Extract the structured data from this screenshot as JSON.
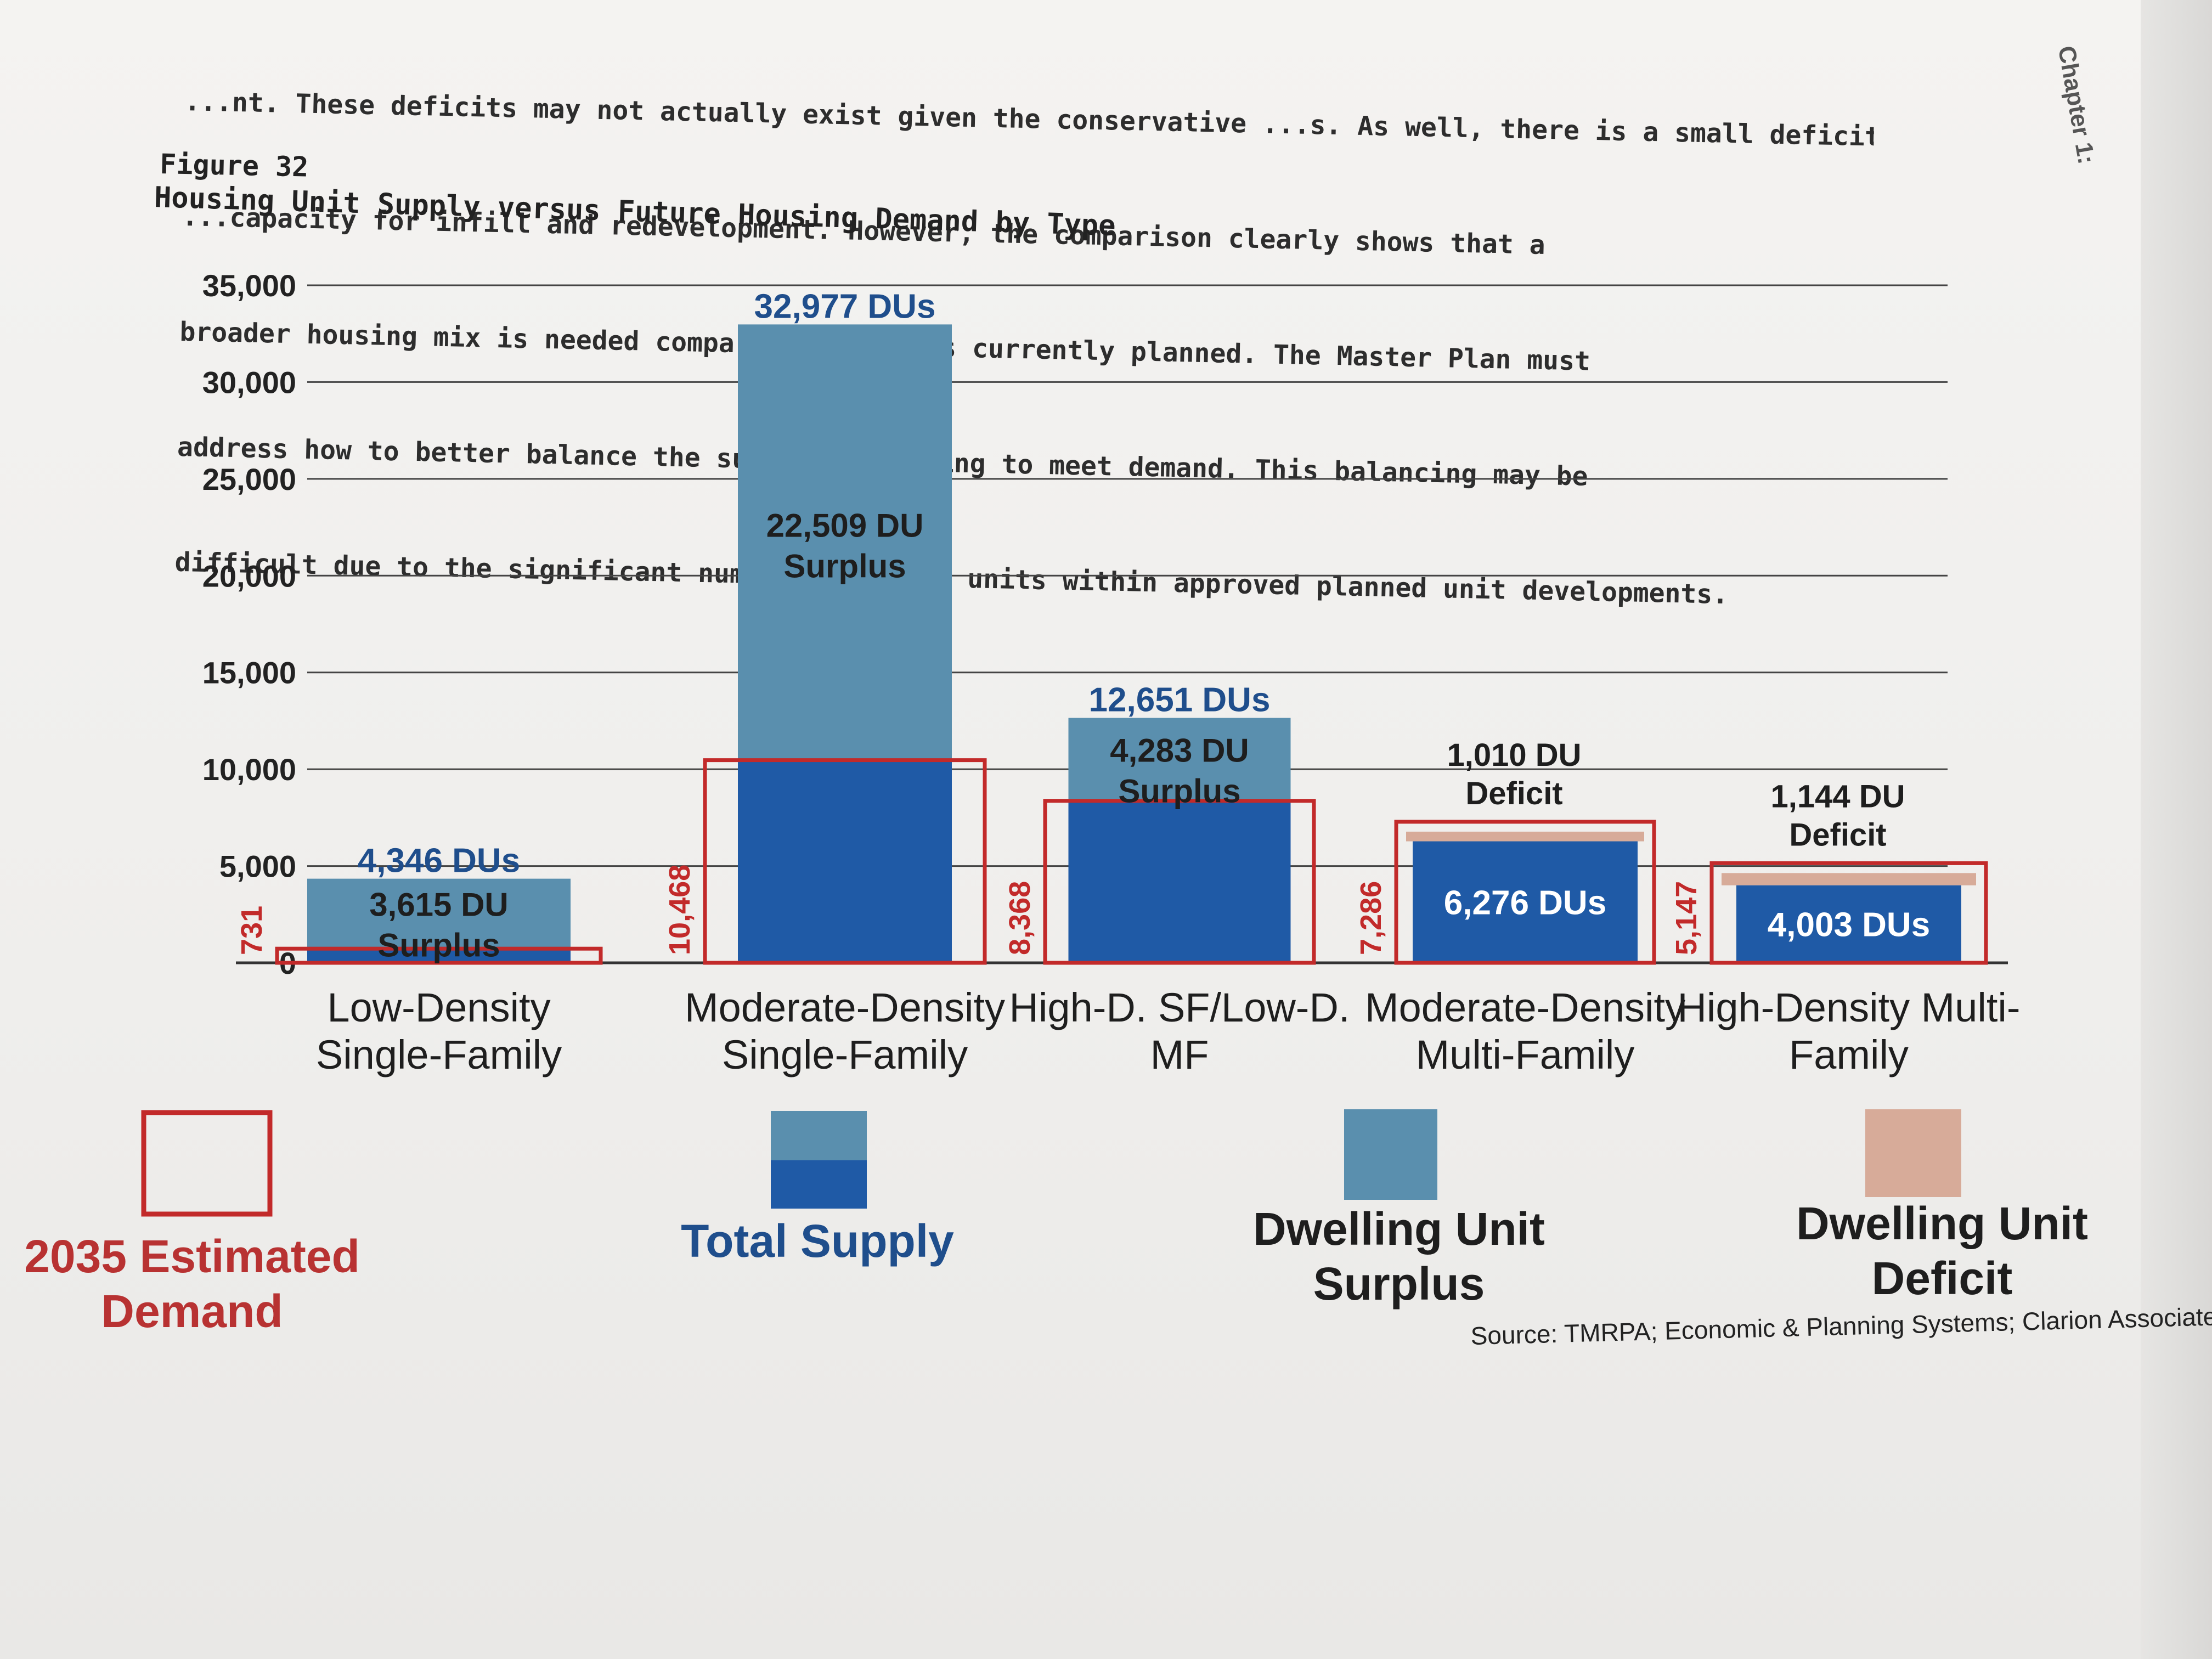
{
  "document": {
    "paragraph_lines": [
      "...nt. These deficits may not actually exist given the conservative ...s. As well, there is a small deficit of",
      "...capacity for infill and redevelopment. However, the comparison clearly shows that a",
      "broader housing mix is needed compared to what is currently planned. The Master Plan must",
      "address how to better balance the supply of housing to meet demand. This balancing may be",
      "difficult due to the significant number of vacant units within approved planned unit developments."
    ],
    "figure_label": "Figure 32",
    "chapter_tab": "Chapter 1:"
  },
  "chart_data": {
    "type": "bar",
    "title": "Housing Unit Supply versus Future Housing Demand by Type",
    "ylim": [
      0,
      35000
    ],
    "yticks": [
      "0",
      "5,000",
      "10,000",
      "15,000",
      "20,000",
      "25,000",
      "30,000",
      "35,000"
    ],
    "ytick_values": [
      0,
      5000,
      10000,
      15000,
      20000,
      25000,
      30000,
      35000
    ],
    "grid": true,
    "categories": [
      [
        "Low-Density",
        "Single-Family"
      ],
      [
        "Moderate-Density",
        "Single-Family"
      ],
      [
        "High-D. SF/Low-D.",
        "MF"
      ],
      [
        "Moderate-Density",
        "Multi-Family"
      ],
      [
        "High-Density Multi-",
        "Family"
      ]
    ],
    "series": [
      {
        "name": "2035 Estimated Demand",
        "values": [
          731,
          10468,
          8368,
          7286,
          5147
        ]
      },
      {
        "name": "Total Supply",
        "values": [
          4346,
          32977,
          12651,
          6276,
          4003
        ]
      }
    ],
    "demand_labels": [
      "731",
      "10,468",
      "8,368",
      "7,286",
      "5,147"
    ],
    "supply_labels": [
      "4,346 DUs",
      "32,977 DUs",
      "12,651 DUs",
      "6,276 DUs",
      "4,003 DUs"
    ],
    "balance_labels": [
      [
        "3,615 DU",
        "Surplus"
      ],
      [
        "22,509 DU",
        "Surplus"
      ],
      [
        "4,283 DU",
        "Surplus"
      ],
      [
        "1,010 DU",
        "Deficit"
      ],
      [
        "1,144 DU",
        "Deficit"
      ]
    ],
    "legend": [
      {
        "lines": [
          "2035 Estimated",
          "Demand"
        ],
        "color": "#b83232"
      },
      {
        "lines": [
          "Total Supply"
        ],
        "color": "#1f4e8c"
      },
      {
        "lines": [
          "Dwelling Unit",
          "Surplus"
        ],
        "color": "#5a8fae"
      },
      {
        "lines": [
          "Dwelling Unit",
          "Deficit"
        ],
        "color": "#d7ab99"
      }
    ],
    "colors": {
      "demand_outline": "#c22a2a",
      "supply_dark": "#1f5aa6",
      "surplus": "#5a8fae",
      "deficit": "#d7ab99",
      "supply_label": "#1f4e8c"
    },
    "source": "Source: TMRPA; Economic & Planning Systems; Clarion Associates"
  }
}
